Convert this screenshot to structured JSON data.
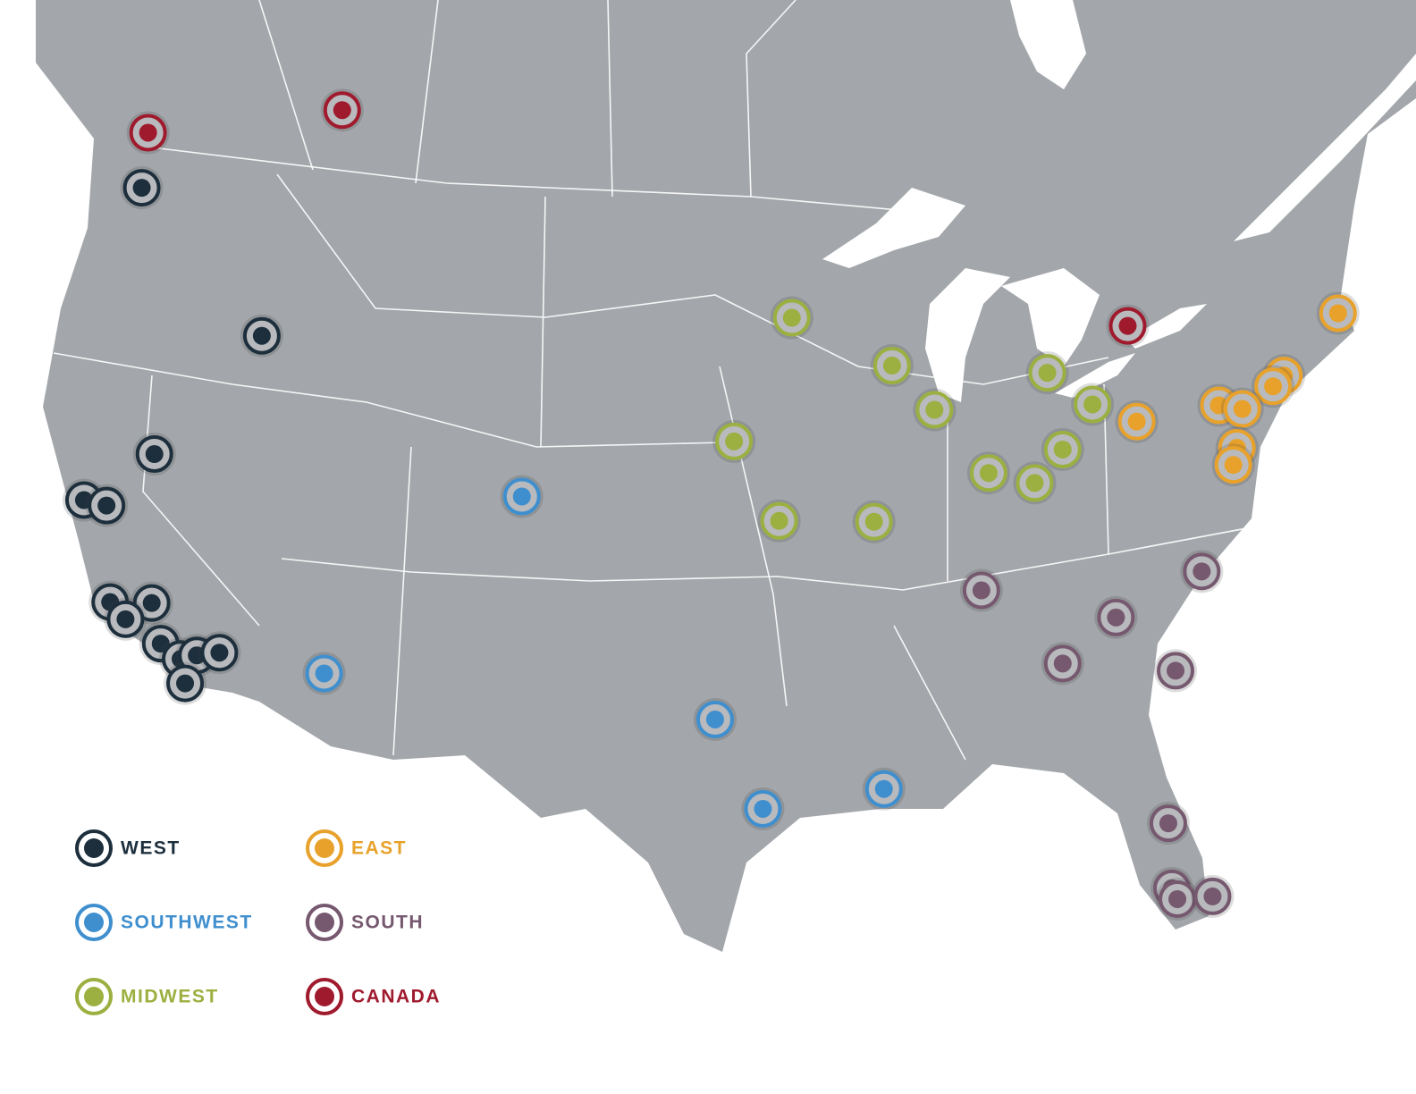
{
  "legend": [
    {
      "name": "WEST",
      "color": "#1d2f3d"
    },
    {
      "name": "SOUTHWEST",
      "color": "#3f8fcf"
    },
    {
      "name": "MIDWEST",
      "color": "#9bb040"
    },
    {
      "name": "EAST",
      "color": "#e8a22b"
    },
    {
      "name": "SOUTH",
      "color": "#76586f"
    },
    {
      "name": "CANADA",
      "color": "#a01a2e"
    }
  ]
}
